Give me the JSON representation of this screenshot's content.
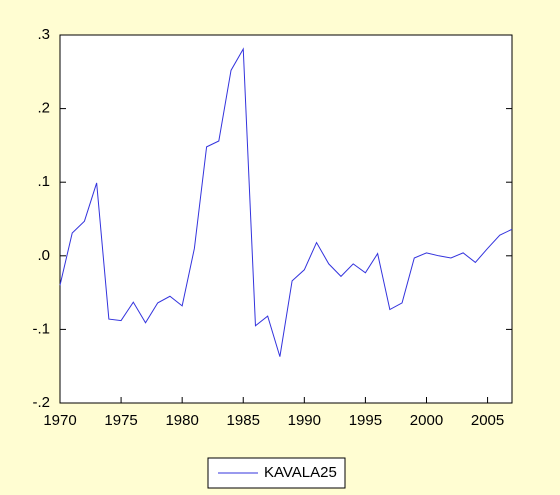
{
  "chart_data": {
    "type": "line",
    "x": [
      1970,
      1971,
      1972,
      1973,
      1974,
      1975,
      1976,
      1977,
      1978,
      1979,
      1980,
      1981,
      1982,
      1983,
      1984,
      1985,
      1986,
      1987,
      1988,
      1989,
      1990,
      1991,
      1992,
      1993,
      1994,
      1995,
      1996,
      1997,
      1998,
      1999,
      2000,
      2001,
      2002,
      2003,
      2004,
      2005,
      2006,
      2007
    ],
    "series": [
      {
        "name": "KAVALA25",
        "color": "#3333dd",
        "values": [
          -0.04,
          0.031,
          0.047,
          0.099,
          -0.086,
          -0.088,
          -0.063,
          -0.091,
          -0.064,
          -0.055,
          -0.068,
          0.01,
          0.148,
          0.156,
          0.252,
          0.281,
          -0.095,
          -0.082,
          -0.137,
          -0.034,
          -0.019,
          0.018,
          -0.011,
          -0.028,
          -0.011,
          -0.023,
          0.003,
          -0.073,
          -0.064,
          -0.003,
          0.004,
          0.0,
          -0.003,
          0.004,
          -0.009,
          0.01,
          0.028,
          0.036
        ]
      }
    ],
    "xlim": [
      1970,
      2007
    ],
    "xticks": [
      1970,
      1975,
      1980,
      1985,
      1990,
      1995,
      2000,
      2005
    ],
    "ylim": [
      -0.2,
      0.3
    ],
    "yticks": [
      {
        "value": -0.2,
        "label": "-.2"
      },
      {
        "value": -0.1,
        "label": "-.1"
      },
      {
        "value": 0.0,
        "label": ".0"
      },
      {
        "value": 0.1,
        "label": ".1"
      },
      {
        "value": 0.2,
        "label": ".2"
      },
      {
        "value": 0.3,
        "label": ".3"
      }
    ],
    "legend": "bottom"
  }
}
